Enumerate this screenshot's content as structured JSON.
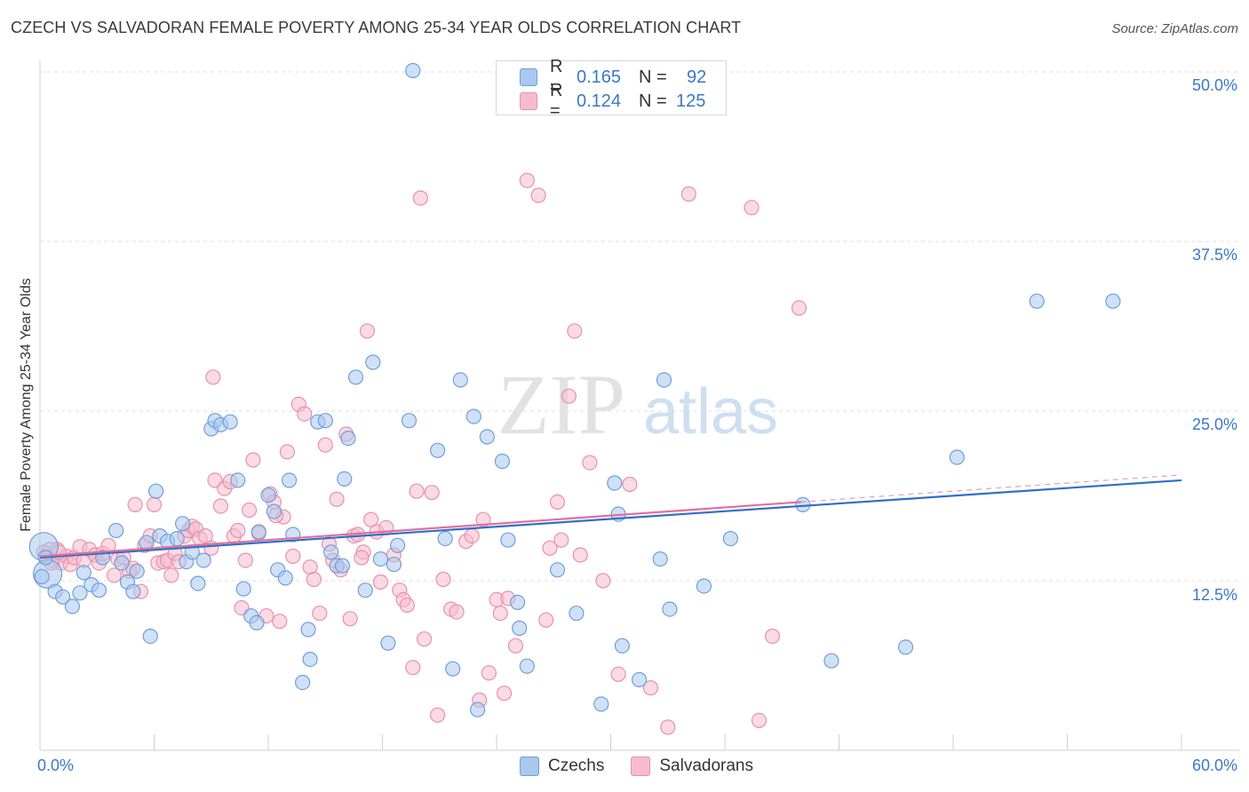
{
  "header": {
    "title": "CZECH VS SALVADORAN FEMALE POVERTY AMONG 25-34 YEAR OLDS CORRELATION CHART",
    "source": "Source: ZipAtlas.com"
  },
  "watermark": {
    "zip": "ZIP",
    "atlas": "atlas"
  },
  "legend_top": {
    "rows": [
      {
        "r_label": "R =",
        "r_value": "0.165",
        "n_label": "N =",
        "n_value": "92"
      },
      {
        "r_label": "R =",
        "r_value": "0.124",
        "n_label": "N =",
        "n_value": "125"
      }
    ]
  },
  "legend_bottom": {
    "czechs": "Czechs",
    "salvadorans": "Salvadorans"
  },
  "colors": {
    "czech_fill": "#a9c8ee",
    "czech_stroke": "#6f9fdb",
    "czech_line": "#2f6fcc",
    "salv_fill": "#f6bccd",
    "salv_stroke": "#e891ac",
    "salv_line": "#e0709a",
    "grid": "#dddddd",
    "tick_text": "#3a78c8"
  },
  "chart_data": {
    "type": "scatter",
    "title": "CZECH VS SALVADORAN FEMALE POVERTY AMONG 25-34 YEAR OLDS CORRELATION CHART",
    "xlabel": "",
    "ylabel": "Female Poverty Among 25-34 Year Olds",
    "xlim": [
      0,
      60
    ],
    "ylim": [
      0,
      51
    ],
    "x_tick_labels": [
      "0.0%",
      "60.0%"
    ],
    "y_ticks": [
      12.5,
      25.0,
      37.5,
      50.0
    ],
    "y_tick_labels": [
      "12.5%",
      "25.0%",
      "37.5%",
      "50.0%"
    ],
    "grid": true,
    "legend_position": "top-center",
    "series": [
      {
        "name": "Czechs",
        "R": 0.165,
        "N": 92,
        "trend": {
          "x": [
            0,
            60
          ],
          "y": [
            14.2,
            19.9
          ]
        },
        "points": [
          [
            0.2,
            15.0,
            2
          ],
          [
            0.4,
            13.0,
            2
          ],
          [
            0.3,
            14.2,
            1
          ],
          [
            0.8,
            11.7,
            1
          ],
          [
            1.2,
            11.3,
            1
          ],
          [
            1.7,
            10.6,
            1
          ],
          [
            2.1,
            11.6,
            1
          ],
          [
            2.3,
            13.1,
            1
          ],
          [
            2.7,
            12.2,
            1
          ],
          [
            3.1,
            11.8,
            1
          ],
          [
            3.3,
            14.2,
            1
          ],
          [
            4.0,
            16.2,
            1
          ],
          [
            4.3,
            13.8,
            1
          ],
          [
            4.6,
            12.4,
            1
          ],
          [
            4.9,
            11.7,
            1
          ],
          [
            5.1,
            13.2,
            1
          ],
          [
            5.6,
            15.3,
            1
          ],
          [
            5.8,
            8.4,
            1
          ],
          [
            6.1,
            19.1,
            1
          ],
          [
            6.3,
            15.8,
            1
          ],
          [
            6.7,
            15.4,
            1
          ],
          [
            7.2,
            15.6,
            1
          ],
          [
            7.5,
            16.7,
            1
          ],
          [
            7.7,
            13.9,
            1
          ],
          [
            8.0,
            14.6,
            1
          ],
          [
            8.3,
            12.3,
            1
          ],
          [
            8.6,
            14.0,
            1
          ],
          [
            9.0,
            23.7,
            1
          ],
          [
            9.2,
            24.3,
            1
          ],
          [
            9.5,
            24.0,
            1
          ],
          [
            10.0,
            24.2,
            1
          ],
          [
            10.4,
            19.9,
            1
          ],
          [
            10.7,
            11.9,
            1
          ],
          [
            11.1,
            9.9,
            1
          ],
          [
            11.4,
            9.4,
            1
          ],
          [
            11.5,
            16.1,
            1
          ],
          [
            12.0,
            18.8,
            1
          ],
          [
            12.3,
            17.6,
            1
          ],
          [
            12.5,
            13.3,
            1
          ],
          [
            12.9,
            12.7,
            1
          ],
          [
            13.1,
            19.9,
            1
          ],
          [
            13.3,
            15.9,
            1
          ],
          [
            13.8,
            5.0,
            1
          ],
          [
            14.1,
            8.9,
            1
          ],
          [
            14.2,
            6.7,
            1
          ],
          [
            14.6,
            24.2,
            1
          ],
          [
            15.0,
            24.3,
            1
          ],
          [
            15.3,
            14.6,
            1
          ],
          [
            15.6,
            13.6,
            1
          ],
          [
            15.9,
            13.6,
            1
          ],
          [
            16.0,
            20.0,
            1
          ],
          [
            16.2,
            23.0,
            1
          ],
          [
            16.6,
            27.5,
            1
          ],
          [
            17.1,
            11.8,
            1
          ],
          [
            17.5,
            28.6,
            1
          ],
          [
            17.9,
            14.1,
            1
          ],
          [
            18.3,
            7.9,
            1
          ],
          [
            18.6,
            13.7,
            1
          ],
          [
            18.8,
            15.1,
            1
          ],
          [
            19.4,
            24.3,
            1
          ],
          [
            19.6,
            50.1,
            1
          ],
          [
            20.9,
            22.1,
            1
          ],
          [
            21.3,
            15.6,
            1
          ],
          [
            21.7,
            6.0,
            1
          ],
          [
            22.1,
            27.3,
            1
          ],
          [
            22.8,
            24.6,
            1
          ],
          [
            23.0,
            3.0,
            1
          ],
          [
            23.5,
            23.1,
            1
          ],
          [
            24.3,
            21.3,
            1
          ],
          [
            24.6,
            15.5,
            1
          ],
          [
            25.1,
            10.9,
            1
          ],
          [
            25.2,
            9.0,
            1
          ],
          [
            25.6,
            6.2,
            1
          ],
          [
            27.2,
            13.3,
            1
          ],
          [
            28.2,
            10.1,
            1
          ],
          [
            29.5,
            3.4,
            1
          ],
          [
            30.2,
            19.7,
            1
          ],
          [
            30.4,
            17.4,
            1
          ],
          [
            30.6,
            7.7,
            1
          ],
          [
            31.5,
            5.2,
            1
          ],
          [
            32.6,
            14.1,
            1
          ],
          [
            32.8,
            27.3,
            1
          ],
          [
            33.1,
            10.4,
            1
          ],
          [
            34.9,
            12.1,
            1
          ],
          [
            36.3,
            15.6,
            1
          ],
          [
            40.1,
            18.1,
            1
          ],
          [
            41.6,
            6.6,
            1
          ],
          [
            45.5,
            7.6,
            1
          ],
          [
            48.2,
            21.6,
            1
          ],
          [
            52.4,
            33.1,
            1
          ],
          [
            56.4,
            33.1,
            1
          ],
          [
            0.1,
            12.8,
            1
          ]
        ]
      },
      {
        "name": "Salvadorans",
        "R": 0.124,
        "N": 125,
        "trend": {
          "x": [
            0,
            40
          ],
          "y": [
            14.3,
            18.3
          ]
        },
        "points": [
          [
            0.2,
            14.6,
            1
          ],
          [
            0.3,
            14.3,
            1
          ],
          [
            0.5,
            14.8,
            1
          ],
          [
            0.7,
            14.0,
            1
          ],
          [
            0.9,
            14.8,
            1
          ],
          [
            1.1,
            13.8,
            1
          ],
          [
            1.4,
            14.3,
            1
          ],
          [
            1.6,
            13.7,
            1
          ],
          [
            1.8,
            14.2,
            1
          ],
          [
            2.1,
            15.0,
            1
          ],
          [
            2.3,
            14.0,
            1
          ],
          [
            2.6,
            14.8,
            1
          ],
          [
            2.9,
            14.4,
            1
          ],
          [
            3.1,
            13.8,
            1
          ],
          [
            3.3,
            14.5,
            1
          ],
          [
            3.6,
            15.1,
            1
          ],
          [
            3.9,
            12.9,
            1
          ],
          [
            4.1,
            14.1,
            1
          ],
          [
            4.4,
            14.2,
            1
          ],
          [
            4.7,
            13.2,
            1
          ],
          [
            4.9,
            13.4,
            1
          ],
          [
            5.0,
            18.1,
            1
          ],
          [
            5.3,
            11.7,
            1
          ],
          [
            5.5,
            15.1,
            1
          ],
          [
            5.8,
            15.8,
            1
          ],
          [
            6.0,
            18.1,
            1
          ],
          [
            6.2,
            13.8,
            1
          ],
          [
            6.5,
            13.9,
            1
          ],
          [
            6.7,
            14.0,
            1
          ],
          [
            6.9,
            12.9,
            1
          ],
          [
            7.1,
            14.5,
            1
          ],
          [
            7.3,
            13.9,
            1
          ],
          [
            7.6,
            15.8,
            1
          ],
          [
            7.8,
            16.2,
            1
          ],
          [
            8.0,
            16.5,
            1
          ],
          [
            8.2,
            16.3,
            1
          ],
          [
            8.4,
            15.6,
            1
          ],
          [
            8.7,
            15.8,
            1
          ],
          [
            9.0,
            14.9,
            1
          ],
          [
            9.1,
            27.5,
            1
          ],
          [
            9.2,
            19.9,
            1
          ],
          [
            9.5,
            18.0,
            1
          ],
          [
            9.7,
            19.3,
            1
          ],
          [
            10.0,
            19.8,
            1
          ],
          [
            10.2,
            15.8,
            1
          ],
          [
            10.4,
            16.2,
            1
          ],
          [
            10.6,
            10.5,
            1
          ],
          [
            10.8,
            14.0,
            1
          ],
          [
            11.0,
            17.7,
            1
          ],
          [
            11.2,
            21.4,
            1
          ],
          [
            11.5,
            16.0,
            1
          ],
          [
            11.9,
            9.9,
            1
          ],
          [
            12.1,
            18.9,
            1
          ],
          [
            12.3,
            18.3,
            1
          ],
          [
            12.6,
            9.5,
            1
          ],
          [
            12.8,
            17.2,
            1
          ],
          [
            13.0,
            22.0,
            1
          ],
          [
            13.3,
            14.3,
            1
          ],
          [
            13.6,
            25.5,
            1
          ],
          [
            13.9,
            24.8,
            1
          ],
          [
            14.2,
            13.5,
            1
          ],
          [
            14.4,
            12.6,
            1
          ],
          [
            14.7,
            10.1,
            1
          ],
          [
            15.0,
            22.5,
            1
          ],
          [
            15.2,
            15.2,
            1
          ],
          [
            15.4,
            14.0,
            1
          ],
          [
            15.6,
            18.5,
            1
          ],
          [
            15.8,
            13.3,
            1
          ],
          [
            16.1,
            23.3,
            1
          ],
          [
            16.3,
            9.7,
            1
          ],
          [
            16.5,
            15.8,
            1
          ],
          [
            16.7,
            15.9,
            1
          ],
          [
            17.0,
            14.6,
            1
          ],
          [
            17.2,
            30.9,
            1
          ],
          [
            17.4,
            17.0,
            1
          ],
          [
            17.7,
            16.1,
            1
          ],
          [
            17.9,
            12.4,
            1
          ],
          [
            18.2,
            16.4,
            1
          ],
          [
            18.6,
            14.4,
            1
          ],
          [
            18.9,
            11.8,
            1
          ],
          [
            19.1,
            11.1,
            1
          ],
          [
            19.3,
            10.7,
            1
          ],
          [
            19.6,
            6.1,
            1
          ],
          [
            19.8,
            19.1,
            1
          ],
          [
            20.0,
            40.7,
            1
          ],
          [
            20.2,
            8.2,
            1
          ],
          [
            20.6,
            19.0,
            1
          ],
          [
            20.9,
            2.6,
            1
          ],
          [
            21.2,
            12.6,
            1
          ],
          [
            21.6,
            10.4,
            1
          ],
          [
            21.9,
            10.2,
            1
          ],
          [
            22.4,
            15.4,
            1
          ],
          [
            22.7,
            15.8,
            1
          ],
          [
            23.1,
            3.7,
            1
          ],
          [
            23.3,
            17.0,
            1
          ],
          [
            23.6,
            5.7,
            1
          ],
          [
            24.0,
            11.1,
            1
          ],
          [
            24.2,
            10.1,
            1
          ],
          [
            24.4,
            4.2,
            1
          ],
          [
            24.6,
            11.2,
            1
          ],
          [
            25.0,
            7.7,
            1
          ],
          [
            25.6,
            42.0,
            1
          ],
          [
            26.2,
            40.9,
            1
          ],
          [
            26.6,
            9.6,
            1
          ],
          [
            26.8,
            14.9,
            1
          ],
          [
            27.2,
            18.3,
            1
          ],
          [
            27.4,
            15.5,
            1
          ],
          [
            27.8,
            26.1,
            1
          ],
          [
            28.1,
            30.9,
            1
          ],
          [
            28.4,
            14.4,
            1
          ],
          [
            28.9,
            21.2,
            1
          ],
          [
            29.6,
            12.5,
            1
          ],
          [
            30.4,
            5.6,
            1
          ],
          [
            31.0,
            19.6,
            1
          ],
          [
            32.1,
            4.6,
            1
          ],
          [
            33.0,
            1.7,
            1
          ],
          [
            34.1,
            41.0,
            1
          ],
          [
            37.4,
            40.0,
            1
          ],
          [
            37.8,
            2.2,
            1
          ],
          [
            38.5,
            8.4,
            1
          ],
          [
            39.9,
            32.6,
            1
          ],
          [
            0.6,
            13.8,
            1
          ],
          [
            1.0,
            14.6,
            1
          ],
          [
            12.4,
            17.3,
            1
          ],
          [
            16.9,
            14.2,
            1
          ]
        ]
      }
    ]
  }
}
